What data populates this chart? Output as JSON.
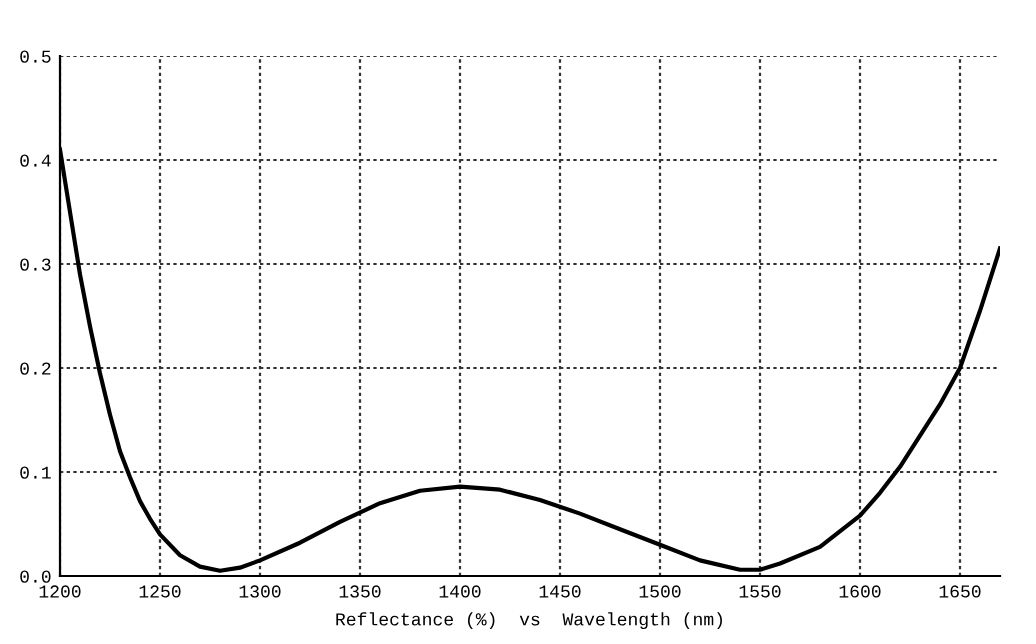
{
  "chart_data": {
    "type": "line",
    "xlabel": "Reflectance (%)  vs  Wavelength (nm)",
    "x": [
      1200,
      1205,
      1210,
      1215,
      1220,
      1225,
      1230,
      1235,
      1240,
      1245,
      1250,
      1260,
      1270,
      1280,
      1290,
      1300,
      1320,
      1340,
      1360,
      1380,
      1400,
      1420,
      1440,
      1460,
      1480,
      1500,
      1520,
      1540,
      1550,
      1560,
      1580,
      1600,
      1610,
      1620,
      1630,
      1640,
      1650,
      1660,
      1670
    ],
    "series": [
      {
        "color": "#000000",
        "values": [
          0.41,
          0.35,
          0.29,
          0.24,
          0.195,
          0.155,
          0.12,
          0.095,
          0.072,
          0.055,
          0.04,
          0.02,
          0.009,
          0.005,
          0.008,
          0.015,
          0.032,
          0.052,
          0.07,
          0.082,
          0.086,
          0.083,
          0.073,
          0.06,
          0.045,
          0.03,
          0.015,
          0.006,
          0.006,
          0.012,
          0.028,
          0.058,
          0.08,
          0.105,
          0.135,
          0.165,
          0.2,
          0.255,
          0.315
        ]
      }
    ],
    "xlim": [
      1200,
      1670
    ],
    "ylim": [
      0,
      0.5
    ],
    "xticks": [
      1200,
      1250,
      1300,
      1350,
      1400,
      1450,
      1500,
      1550,
      1600,
      1650
    ],
    "yticks": [
      {
        "value": 0,
        "label": "0.0"
      },
      0.1,
      0.2,
      0.3,
      0.4,
      0.5
    ],
    "grid": true,
    "line_style": "solid",
    "marker": "none"
  }
}
